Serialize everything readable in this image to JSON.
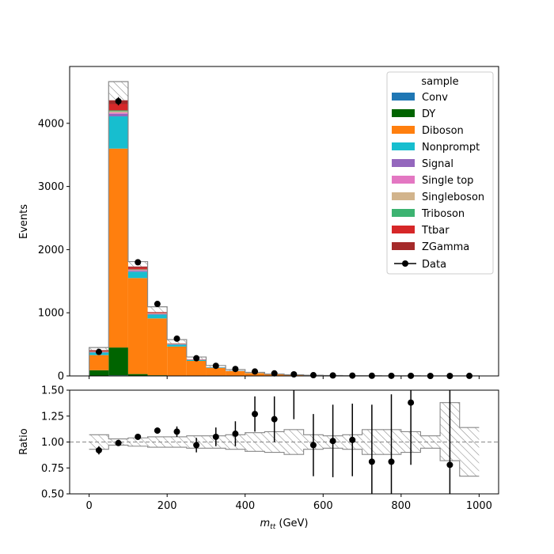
{
  "chart_data": [
    {
      "type": "stacked-histogram",
      "ylabel": "Events",
      "xlim": [
        -50,
        1050
      ],
      "ylim": [
        0,
        4900
      ],
      "yticks": [
        0,
        1000,
        2000,
        3000,
        4000
      ],
      "xticks": [
        0,
        200,
        400,
        600,
        800,
        1000
      ],
      "bin_edges": [
        0,
        50,
        100,
        150,
        200,
        250,
        300,
        350,
        400,
        450,
        500,
        550,
        600,
        650,
        700,
        750,
        800,
        850,
        900,
        950,
        1000
      ],
      "legend": {
        "title": "sample",
        "position": "upper right"
      },
      "series": [
        {
          "name": "Conv",
          "color": "#1f77b4",
          "values": [
            0,
            10,
            5,
            3,
            2,
            1,
            0,
            0,
            0,
            0,
            0,
            0,
            0,
            0,
            0,
            0,
            0,
            0,
            0,
            0
          ]
        },
        {
          "name": "DY",
          "color": "#006400",
          "values": [
            90,
            440,
            25,
            8,
            3,
            2,
            1,
            1,
            0,
            0,
            0,
            0,
            0,
            0,
            0,
            0,
            0,
            0,
            0,
            0
          ]
        },
        {
          "name": "Diboson",
          "color": "#ff7f0e",
          "values": [
            240,
            3150,
            1520,
            900,
            460,
            235,
            125,
            75,
            45,
            25,
            16,
            10,
            6,
            4,
            3,
            2,
            1,
            1,
            1,
            1
          ]
        },
        {
          "name": "Nonprompt",
          "color": "#17becf",
          "values": [
            40,
            510,
            100,
            60,
            30,
            15,
            8,
            4,
            2,
            1,
            1,
            0,
            0,
            0,
            0,
            0,
            0,
            0,
            0,
            0
          ]
        },
        {
          "name": "Signal",
          "color": "#9467bd",
          "values": [
            5,
            40,
            15,
            8,
            4,
            2,
            1,
            1,
            0,
            0,
            0,
            0,
            0,
            0,
            0,
            0,
            0,
            0,
            0,
            0
          ]
        },
        {
          "name": "Single top",
          "color": "#e377c2",
          "values": [
            3,
            20,
            8,
            5,
            3,
            2,
            1,
            0,
            0,
            0,
            0,
            0,
            0,
            0,
            0,
            0,
            0,
            0,
            0,
            0
          ]
        },
        {
          "name": "Singleboson",
          "color": "#d2b48c",
          "values": [
            3,
            20,
            8,
            5,
            2,
            1,
            0,
            0,
            0,
            0,
            0,
            0,
            0,
            0,
            0,
            0,
            0,
            0,
            0,
            0
          ]
        },
        {
          "name": "Triboson",
          "color": "#3cb371",
          "values": [
            2,
            15,
            6,
            3,
            2,
            1,
            0,
            0,
            0,
            0,
            0,
            0,
            0,
            0,
            0,
            0,
            0,
            0,
            0,
            0
          ]
        },
        {
          "name": "Ttbar",
          "color": "#d62728",
          "values": [
            10,
            100,
            25,
            10,
            5,
            3,
            1,
            1,
            0,
            0,
            0,
            0,
            0,
            0,
            0,
            0,
            0,
            0,
            0,
            0
          ]
        },
        {
          "name": "ZGamma",
          "color": "#a52a2a",
          "values": [
            15,
            60,
            20,
            8,
            4,
            2,
            1,
            0,
            0,
            0,
            0,
            0,
            0,
            0,
            0,
            0,
            0,
            0,
            0,
            0
          ]
        }
      ],
      "uncertainty_band": {
        "upper": [
          450,
          4660,
          1810,
          1095,
          575,
          300,
          165,
          100,
          57,
          30,
          19,
          12,
          7,
          4,
          3,
          2,
          2,
          1,
          1,
          1
        ]
      },
      "data": {
        "name": "Data",
        "x": [
          25,
          75,
          125,
          175,
          225,
          275,
          325,
          375,
          425,
          475,
          525,
          575,
          625,
          675,
          725,
          775,
          825,
          875,
          925,
          975
        ],
        "y": [
          380,
          4350,
          1800,
          1140,
          590,
          280,
          160,
          110,
          70,
          40,
          25,
          12,
          8,
          5,
          3,
          2,
          2,
          0,
          0,
          1
        ]
      }
    },
    {
      "type": "ratio",
      "xlabel": "m_{tt} (GeV)",
      "xlabel_main": "m",
      "xlabel_sub": "tt",
      "xlabel_unit": " (GeV)",
      "ylabel": "Ratio",
      "ylim": [
        0.5,
        1.5
      ],
      "yticks": [
        "0.50",
        "0.75",
        "1.00",
        "1.25",
        "1.50"
      ],
      "xticks": [
        "0",
        "200",
        "400",
        "600",
        "800",
        "1000"
      ],
      "reference_line": 1.0,
      "band_low": [
        0.93,
        0.97,
        0.96,
        0.95,
        0.95,
        0.94,
        0.94,
        0.93,
        0.91,
        0.9,
        0.88,
        0.93,
        0.94,
        0.93,
        0.88,
        0.88,
        0.9,
        0.94,
        0.82,
        0.67
      ],
      "band_high": [
        1.07,
        1.03,
        1.04,
        1.05,
        1.05,
        1.06,
        1.06,
        1.07,
        1.09,
        1.1,
        1.12,
        1.07,
        1.06,
        1.07,
        1.12,
        1.12,
        1.1,
        1.06,
        1.38,
        1.14
      ],
      "points": {
        "x": [
          25,
          75,
          125,
          175,
          225,
          275,
          325,
          375,
          425,
          475,
          525,
          575,
          625,
          675,
          725,
          775,
          825,
          925
        ],
        "y": [
          0.92,
          0.99,
          1.05,
          1.11,
          1.1,
          0.97,
          1.05,
          1.08,
          1.27,
          1.22,
          1.52,
          0.97,
          1.01,
          1.02,
          0.81,
          0.81,
          1.38,
          0.78
        ],
        "err": [
          0.04,
          0.02,
          0.025,
          0.03,
          0.05,
          0.07,
          0.09,
          0.12,
          0.17,
          0.22,
          0.3,
          0.3,
          0.35,
          0.35,
          0.55,
          0.65,
          0.6,
          0.8
        ]
      }
    }
  ]
}
